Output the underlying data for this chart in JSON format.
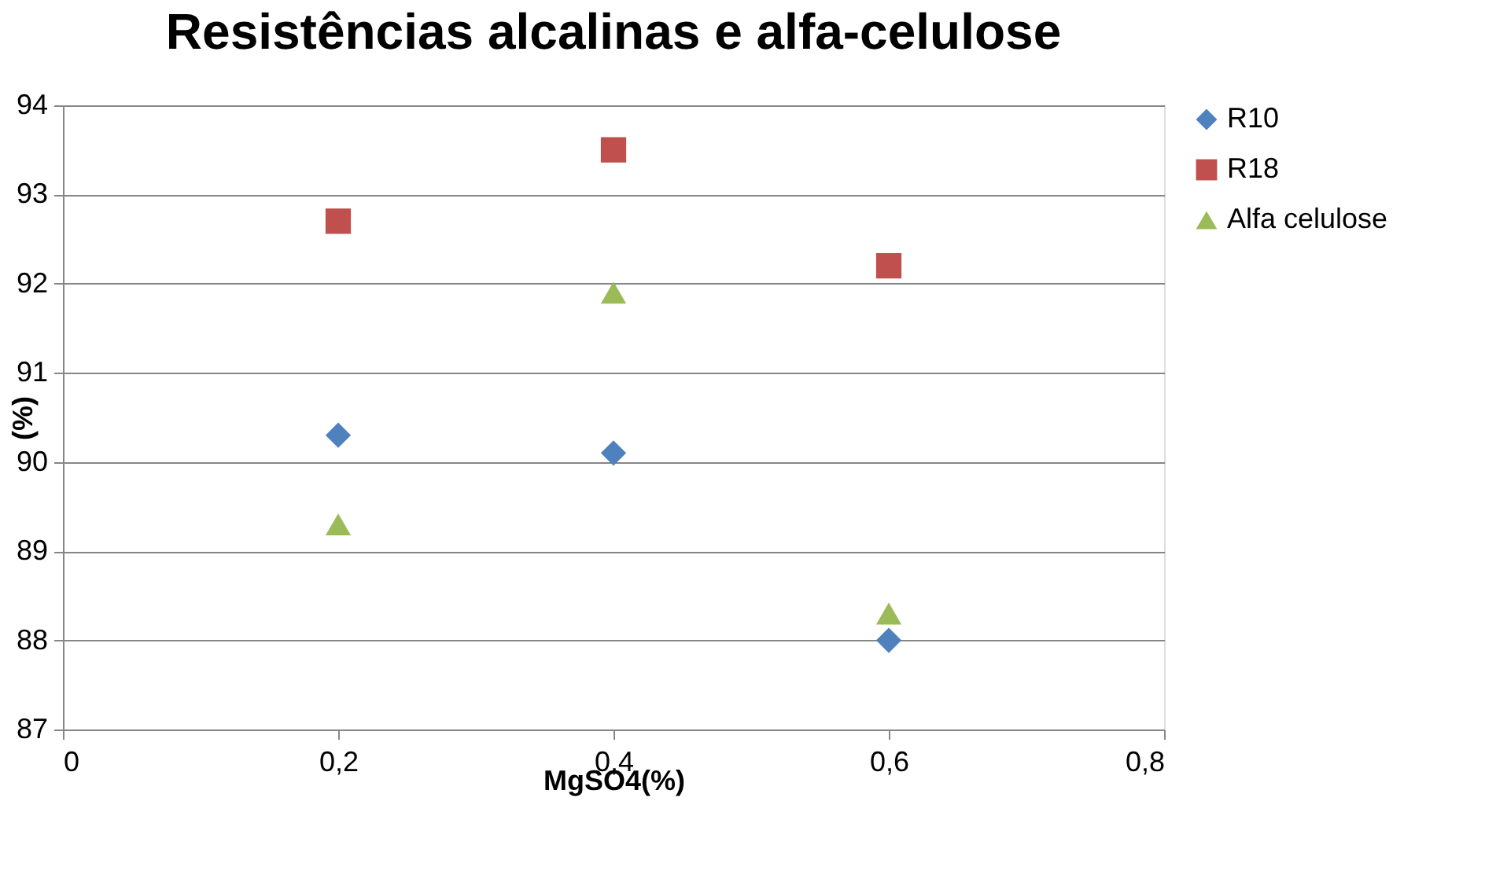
{
  "chart_data": {
    "type": "scatter",
    "title": "Resistências alcalinas e alfa-celulose",
    "xlabel": "MgSO4(%)",
    "ylabel": "(%)",
    "x": [
      0.2,
      0.4,
      0.6
    ],
    "series": [
      {
        "name": "R10",
        "color": "#4f81bd",
        "marker": "diamond",
        "values": [
          90.3,
          90.1,
          88.0
        ]
      },
      {
        "name": "R18",
        "color": "#c0504d",
        "marker": "square",
        "values": [
          92.7,
          93.5,
          92.2
        ]
      },
      {
        "name": "Alfa celulose",
        "color": "#9bbb59",
        "marker": "triangle",
        "values": [
          89.3,
          91.9,
          88.3
        ]
      }
    ],
    "xlim": [
      0,
      0.8
    ],
    "xticks": [
      0,
      {
        "value": 0.2,
        "label": "0,2"
      },
      {
        "value": 0.4,
        "label": "0,4"
      },
      {
        "value": 0.6,
        "label": "0,6"
      },
      {
        "value": 0.8,
        "label": "0,8"
      }
    ],
    "ylim": [
      87,
      94
    ],
    "yticks": [
      87,
      88,
      89,
      90,
      91,
      92,
      93,
      94
    ],
    "grid": "y",
    "legend": "right"
  }
}
